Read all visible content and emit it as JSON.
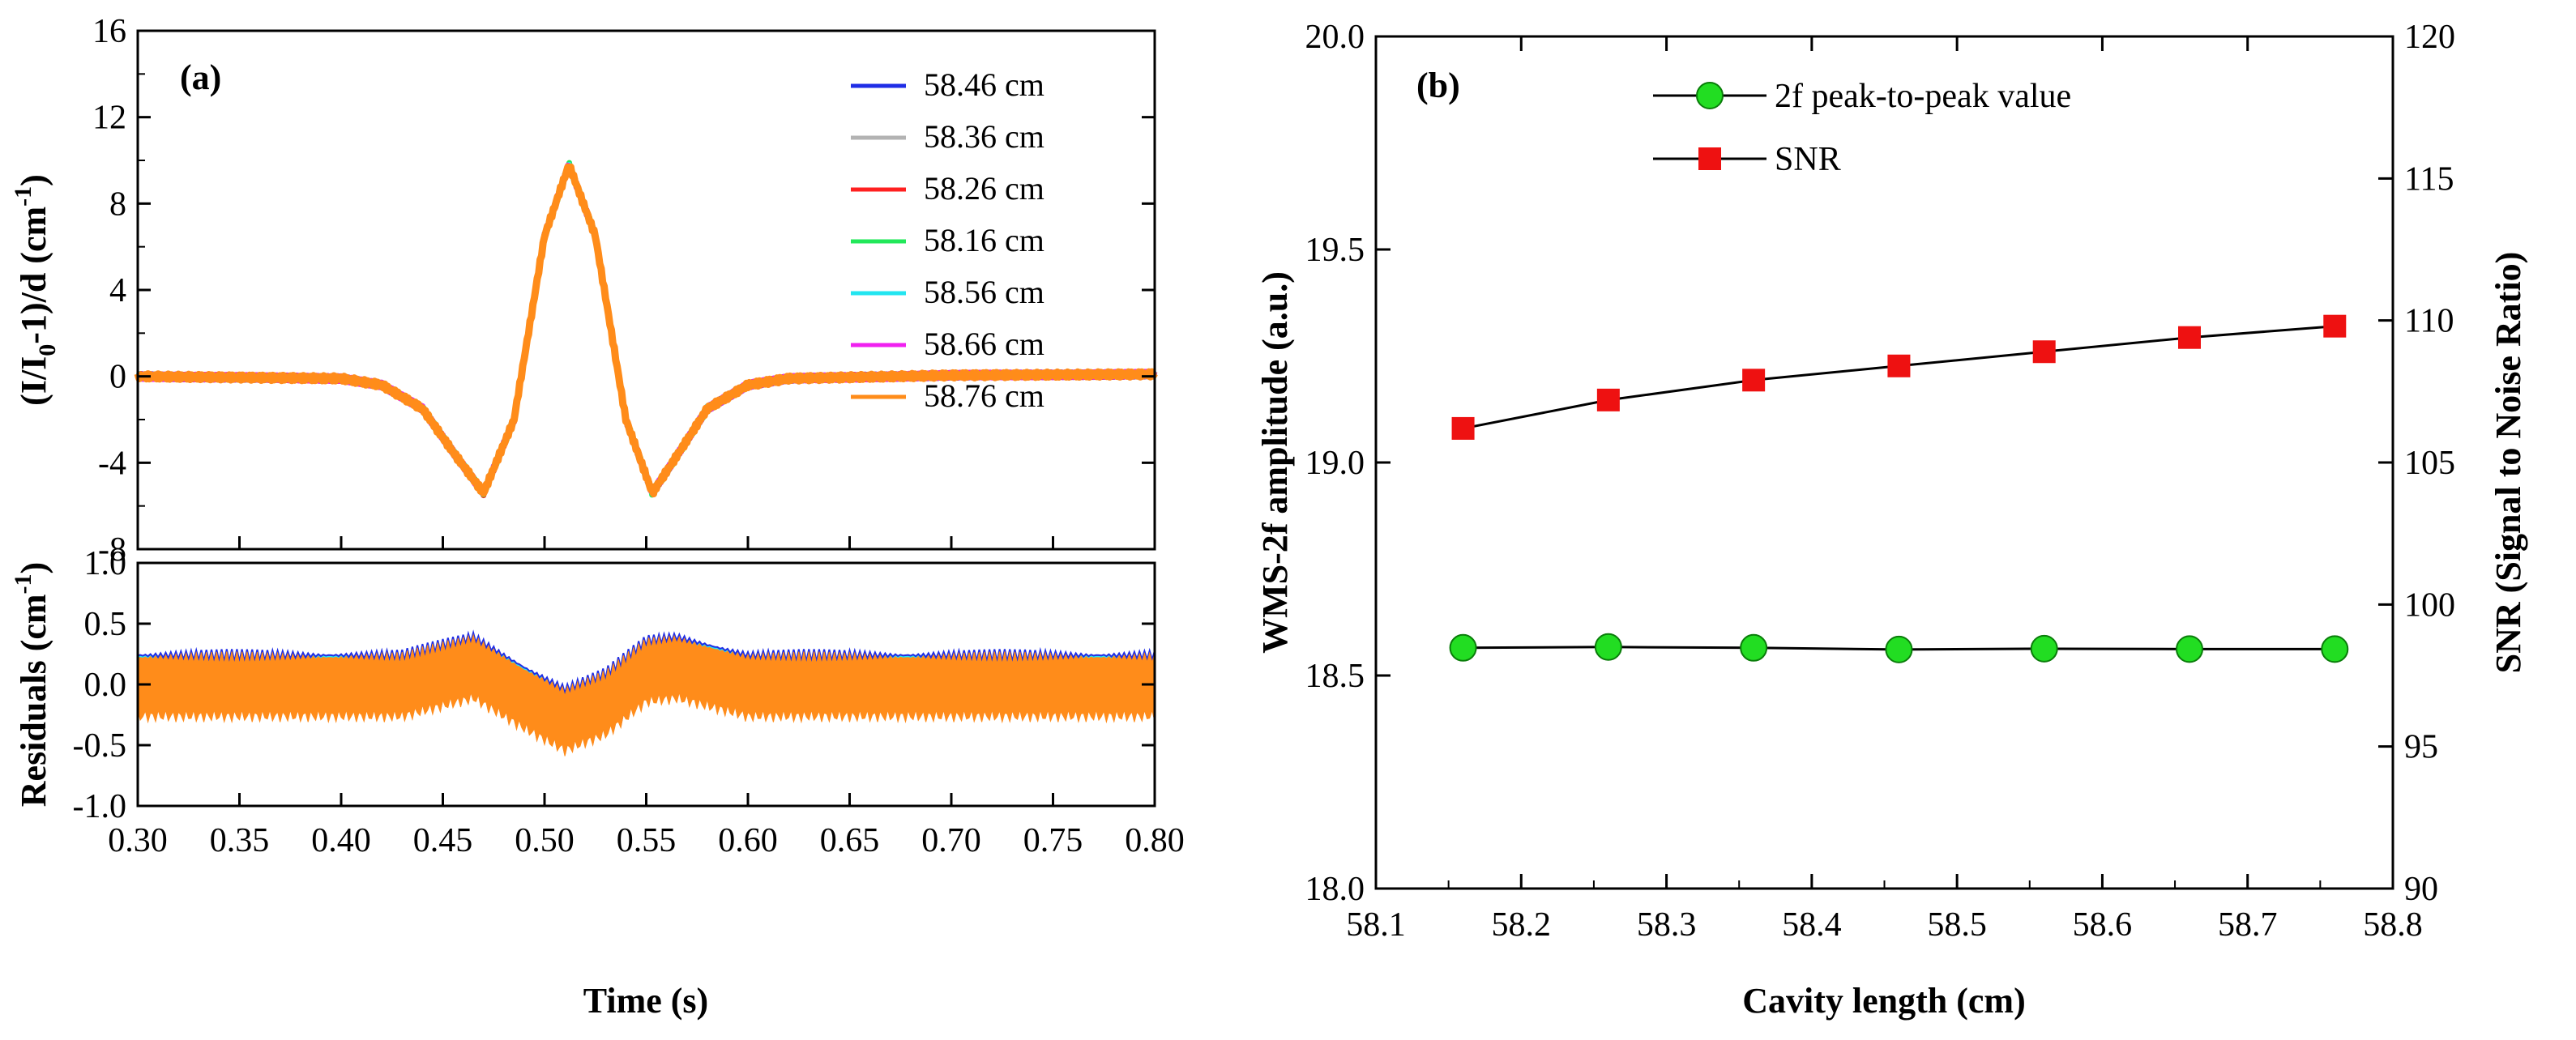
{
  "chart_data": [
    {
      "type": "line",
      "panel_label": "(a)",
      "upper": {
        "ylabel": "(I/I₀-1)/d (cm⁻¹)",
        "ylabel_parts": {
          "pre": "(I/I",
          "sub0": "0",
          "mid": "-1)/d (cm",
          "sup": "-1",
          "post": ")"
        },
        "ylim": [
          -8,
          16
        ],
        "yticks": [
          "-8",
          "-4",
          "0",
          "4",
          "8",
          "12",
          "16"
        ],
        "series": [
          {
            "name": "58.46 cm",
            "color": "#1f2de6"
          },
          {
            "name": "58.36 cm",
            "color": "#b3b3b3"
          },
          {
            "name": "58.26 cm",
            "color": "#ff2020"
          },
          {
            "name": "58.16 cm",
            "color": "#22e85a"
          },
          {
            "name": "58.56 cm",
            "color": "#22e5f0"
          },
          {
            "name": "58.66 cm",
            "color": "#f020f0"
          },
          {
            "name": "58.76 cm",
            "color": "#ff8c1a"
          }
        ],
        "curve": {
          "x": [
            0.3,
            0.4,
            0.42,
            0.44,
            0.455,
            0.47,
            0.485,
            0.5,
            0.512,
            0.525,
            0.54,
            0.553,
            0.567,
            0.58,
            0.6,
            0.62,
            0.7,
            0.8
          ],
          "y": [
            0,
            -0.1,
            -0.4,
            -1.5,
            -3.5,
            -5.4,
            -2.0,
            6.5,
            9.8,
            6.5,
            -2.0,
            -5.4,
            -3.4,
            -1.5,
            -0.4,
            -0.1,
            0.05,
            0.1
          ]
        }
      },
      "lower": {
        "ylabel": "Residuals (cm⁻¹)",
        "ylabel_parts": {
          "pre": "Residuals (cm",
          "sup": "-1",
          "post": ")"
        },
        "ylim": [
          -1.0,
          1.0
        ],
        "yticks": [
          "-1.0",
          "-0.5",
          "0.0",
          "0.5",
          "1.0"
        ],
        "band": {
          "x": [
            0.3,
            0.43,
            0.465,
            0.49,
            0.51,
            0.53,
            0.55,
            0.565,
            0.6,
            0.8
          ],
          "center": [
            0.0,
            0.0,
            0.15,
            -0.1,
            -0.28,
            -0.15,
            0.12,
            0.15,
            0.0,
            0.0
          ],
          "half_width": 0.24
        }
      },
      "xlabel": "Time (s)",
      "xlim": [
        0.3,
        0.8
      ],
      "xticks": [
        "0.30",
        "0.35",
        "0.40",
        "0.45",
        "0.50",
        "0.55",
        "0.60",
        "0.65",
        "0.70",
        "0.75",
        "0.80"
      ]
    },
    {
      "type": "scatter",
      "panel_label": "(b)",
      "xlabel": "Cavity length (cm)",
      "ylabel": "WMS-2f amplitude (a.u.)",
      "y2label": "SNR (Signal to Noise Ratio)",
      "xlim": [
        58.1,
        58.8
      ],
      "ylim": [
        18.0,
        20.0
      ],
      "y2lim": [
        90,
        120
      ],
      "xticks": [
        "58.1",
        "58.2",
        "58.3",
        "58.4",
        "58.5",
        "58.6",
        "58.7",
        "58.8"
      ],
      "yticks": [
        "18.0",
        "18.5",
        "19.0",
        "19.5",
        "20.0"
      ],
      "y2ticks": [
        "90",
        "95",
        "100",
        "105",
        "110",
        "115",
        "120"
      ],
      "series": [
        {
          "name": "2f peak-to-peak value",
          "axis": "left",
          "marker": "circle",
          "color": "#22dd22",
          "x": [
            58.16,
            58.26,
            58.36,
            58.46,
            58.56,
            58.66,
            58.76
          ],
          "values": [
            18.565,
            18.567,
            18.565,
            18.561,
            18.563,
            18.562,
            18.562
          ]
        },
        {
          "name": "SNR",
          "axis": "right",
          "marker": "square",
          "color": "#ee1111",
          "x": [
            58.16,
            58.26,
            58.36,
            58.46,
            58.56,
            58.66,
            58.76
          ],
          "values": [
            106.2,
            107.2,
            107.9,
            108.4,
            108.9,
            109.4,
            109.8
          ]
        }
      ]
    }
  ]
}
